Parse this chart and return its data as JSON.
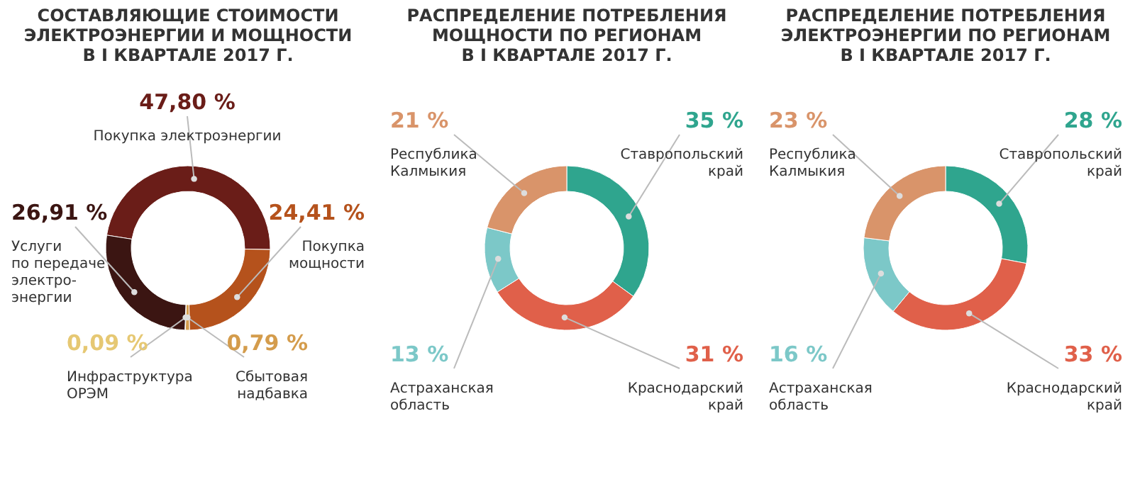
{
  "chart_data": [
    {
      "type": "donut",
      "title": "СОСТАВЛЯЮЩИЕ СТОИМОСТИ\nЭЛЕКТРОЭНЕРГИИ И МОЩНОСТИ\nВ I КВАРТАЛЕ 2017 Г.",
      "categories": [
        "Покупка электроэнергии",
        "Покупка\nмощности",
        "Сбытовая\nнадбавка",
        "Инфраструктура\nОРЭМ",
        "Услуги\nпо передаче\nэлектро-\nэнергии"
      ],
      "values": [
        47.8,
        24.41,
        0.79,
        0.09,
        26.91
      ],
      "colors": [
        "#6a1d18",
        "#b5521c",
        "#d49c4c",
        "#e6c873",
        "#3b1512"
      ],
      "value_labels": [
        "47,80 %",
        "24,41 %",
        "0,79 %",
        "0,09 %",
        "26,91 %"
      ]
    },
    {
      "type": "donut",
      "title": "РАСПРЕДЕЛЕНИЕ ПОТРЕБЛЕНИЯ\nМОЩНОСТИ ПО РЕГИОНАМ\nВ I КВАРТАЛЕ 2017 Г.",
      "categories": [
        "Ставропольский\nкрай",
        "Краснодарский\nкрай",
        "Астраханская\nобласть",
        "Республика\nКалмыкия"
      ],
      "values": [
        35,
        31,
        13,
        21
      ],
      "colors": [
        "#2fa58e",
        "#e0604a",
        "#7cc8c8",
        "#d9946a"
      ],
      "value_labels": [
        "35 %",
        "31 %",
        "13 %",
        "21 %"
      ]
    },
    {
      "type": "donut",
      "title": "РАСПРЕДЕЛЕНИЕ ПОТРЕБЛЕНИЯ\nЭЛЕКТРОЭНЕРГИИ ПО РЕГИОНАМ\nВ I КВАРТАЛЕ 2017 Г.",
      "categories": [
        "Ставропольский\nкрай",
        "Краснодарский\nкрай",
        "Астраханская\nобласть",
        "Республика\nКалмыкия"
      ],
      "values": [
        28,
        33,
        16,
        23
      ],
      "colors": [
        "#2fa58e",
        "#e0604a",
        "#7cc8c8",
        "#d9946a"
      ],
      "value_labels": [
        "28 %",
        "33 %",
        "16 %",
        "23 %"
      ]
    }
  ]
}
